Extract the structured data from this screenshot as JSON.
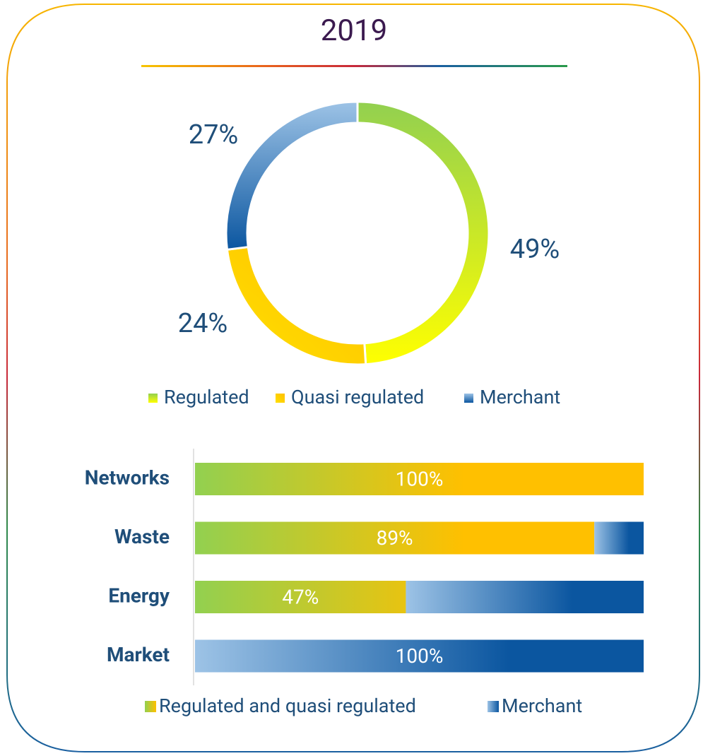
{
  "chart_data": [
    {
      "type": "pie",
      "title": "2019",
      "categories": [
        "Regulated",
        "Quasi regulated",
        "Merchant"
      ],
      "values": [
        49,
        24,
        27
      ],
      "value_labels": [
        "49%",
        "24%",
        "27%"
      ],
      "colors": [
        "#92d050",
        "#ffc000",
        "#0b56a0"
      ]
    },
    {
      "type": "stacked-bar-horizontal",
      "categories": [
        "Networks",
        "Waste",
        "Energy",
        "Market"
      ],
      "series": [
        {
          "name": "Regulated and quasi regulated",
          "color": "#ffc000",
          "values": [
            100,
            89,
            47,
            0
          ],
          "value_labels": [
            "100%",
            "89%",
            "47%",
            null
          ]
        },
        {
          "name": "Merchant",
          "color": "#0b56a0",
          "values": [
            0,
            11,
            53,
            100
          ],
          "value_labels": [
            null,
            null,
            null,
            "100%"
          ]
        }
      ],
      "xlim": [
        0,
        100
      ]
    }
  ]
}
